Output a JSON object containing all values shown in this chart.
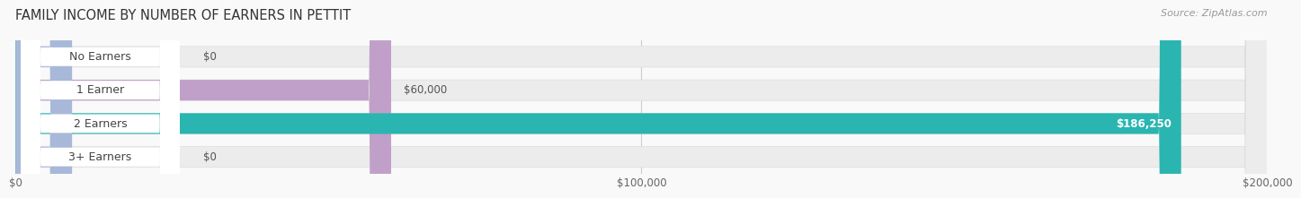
{
  "title": "FAMILY INCOME BY NUMBER OF EARNERS IN PETTIT",
  "source": "Source: ZipAtlas.com",
  "categories": [
    "No Earners",
    "1 Earner",
    "2 Earners",
    "3+ Earners"
  ],
  "values": [
    0,
    60000,
    186250,
    0
  ],
  "max_value": 200000,
  "bar_colors": [
    "#a8b8d8",
    "#c0a0c8",
    "#2ab5b0",
    "#a8b8d8"
  ],
  "bar_bg_color": "#ececec",
  "value_labels": [
    "$0",
    "$60,000",
    "$186,250",
    "$0"
  ],
  "xtick_labels": [
    "$0",
    "$100,000",
    "$200,000"
  ],
  "xtick_values": [
    0,
    100000,
    200000
  ],
  "background_color": "#f9f9f9",
  "title_fontsize": 10.5,
  "label_fontsize": 9,
  "value_fontsize": 8.5,
  "source_fontsize": 8
}
